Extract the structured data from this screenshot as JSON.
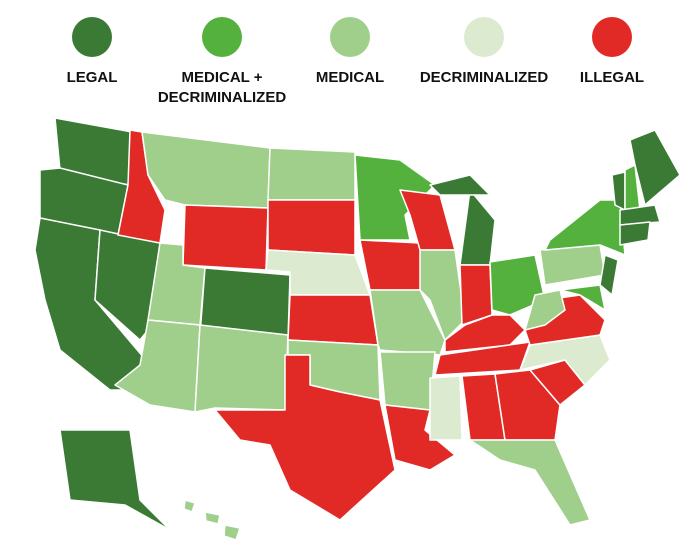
{
  "legend": [
    {
      "lines": [
        "LEGAL"
      ],
      "color": "#3a7a34"
    },
    {
      "lines": [
        "MEDICAL +",
        "DECRIMINALIZED"
      ],
      "color": "#55b13d"
    },
    {
      "lines": [
        "MEDICAL"
      ],
      "color": "#9fcf8a"
    },
    {
      "lines": [
        "DECRIMINALIZED"
      ],
      "color": "#dcebd0"
    },
    {
      "lines": [
        "ILLEGAL"
      ],
      "color": "#e12a26"
    }
  ]
}
